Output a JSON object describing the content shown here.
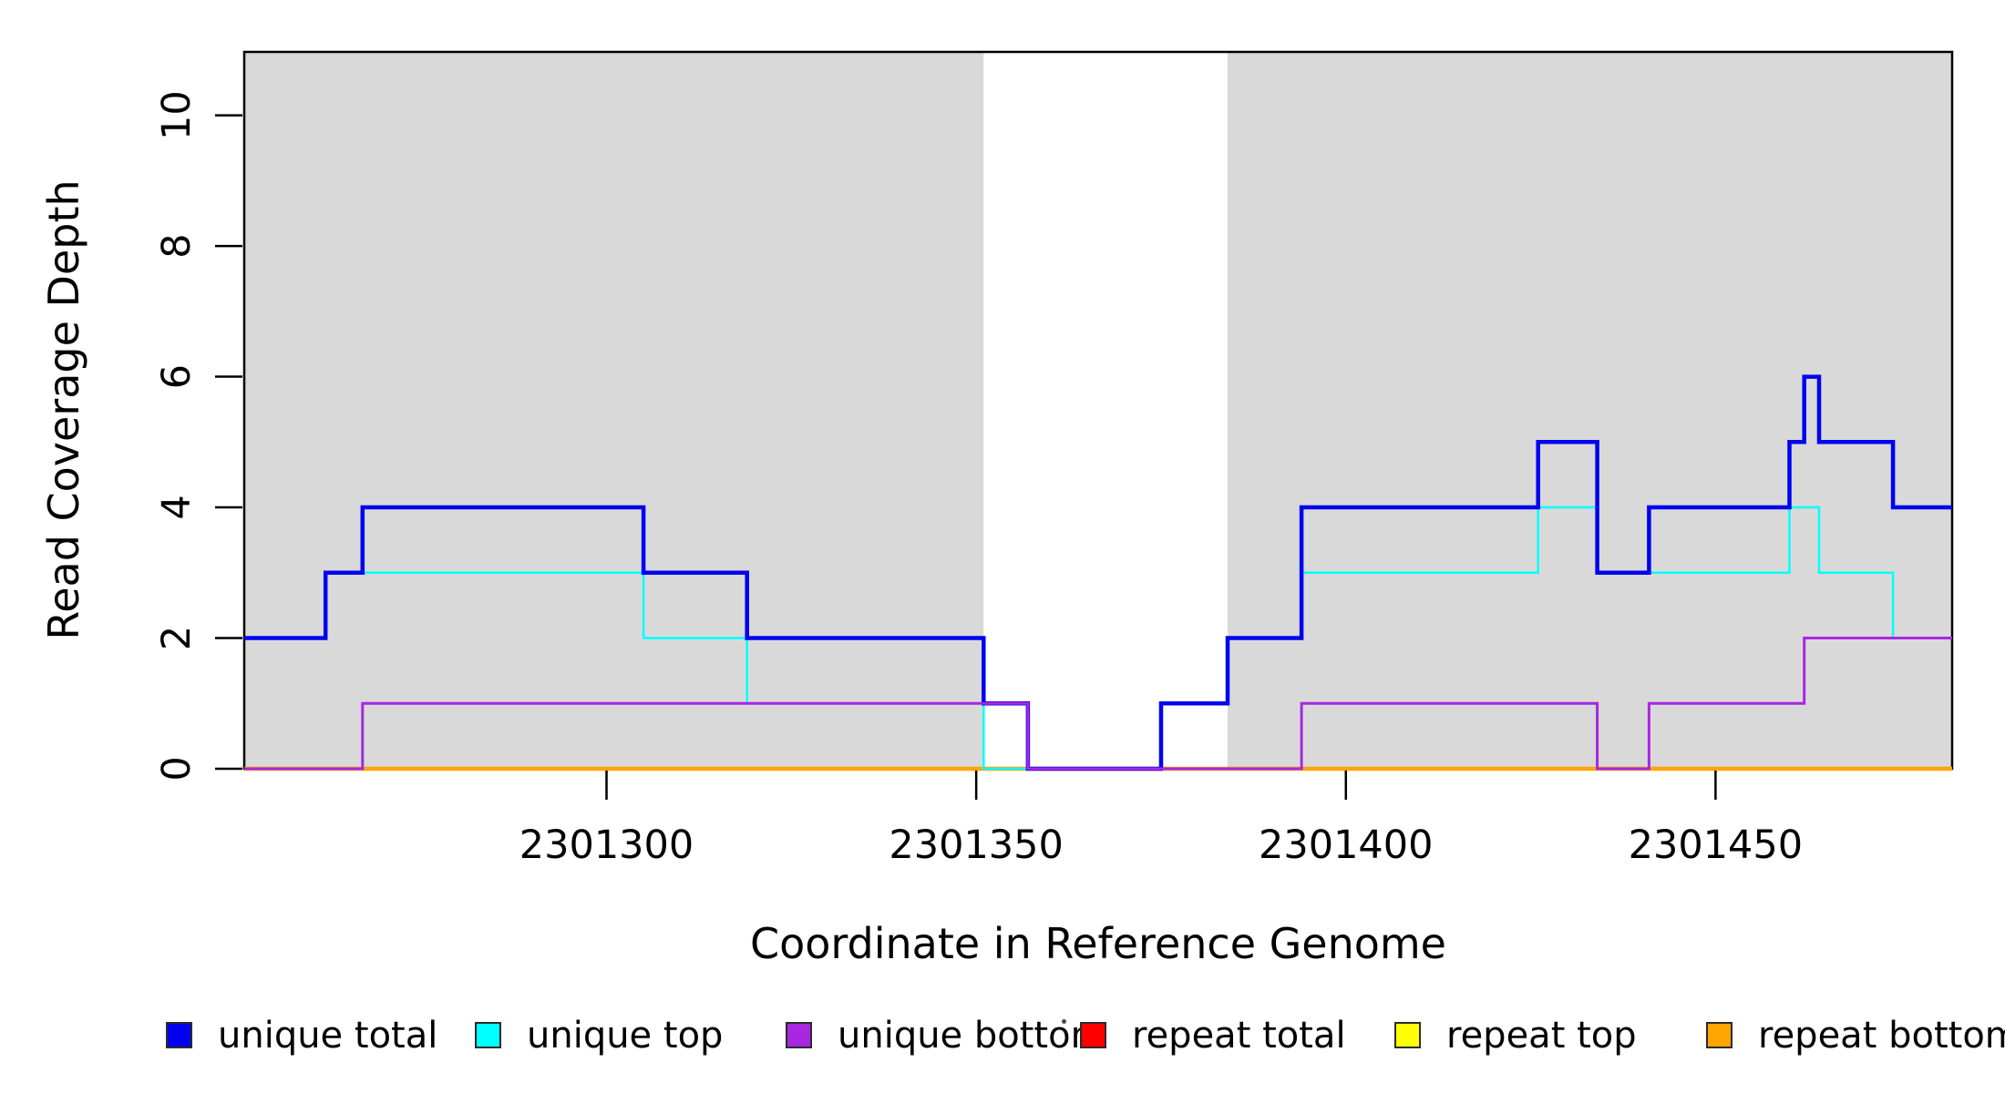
{
  "chart_data": {
    "type": "line",
    "subtype": "step-coverage",
    "title": "",
    "xlabel": "Coordinate in Reference Genome",
    "ylabel": "Read Coverage Depth",
    "x_range": [
      2301251,
      2301482
    ],
    "y_range": [
      0,
      10.97
    ],
    "x_ticks": [
      2301300,
      2301350,
      2301400,
      2301450
    ],
    "y_ticks": [
      0,
      2,
      4,
      6,
      8,
      10
    ],
    "grid": false,
    "legend_position": "bottom",
    "background_color": "#ffffff",
    "shaded_regions": [
      {
        "x0": 2301251,
        "x1": 2301351,
        "color": "#d9d9d9"
      },
      {
        "x0": 2301384,
        "x1": 2301482,
        "color": "#d9d9d9"
      }
    ],
    "series": [
      {
        "name": "repeat total",
        "color": "#ff0000",
        "line_width": 3,
        "points": [
          [
            2301251,
            0
          ]
        ]
      },
      {
        "name": "repeat top",
        "color": "#ffff00",
        "line_width": 3,
        "points": [
          [
            2301251,
            0
          ]
        ]
      },
      {
        "name": "repeat bottom",
        "color": "#ffa500",
        "line_width": 4.5,
        "points": [
          [
            2301251,
            0
          ]
        ]
      },
      {
        "name": "unique top",
        "color": "#00ffff",
        "line_width": 2.5,
        "points": [
          [
            2301251,
            2
          ],
          [
            2301262,
            3
          ],
          [
            2301305,
            2
          ],
          [
            2301319,
            1
          ],
          [
            2301351,
            0
          ],
          [
            2301375,
            1
          ],
          [
            2301384,
            2
          ],
          [
            2301394,
            3
          ],
          [
            2301426,
            4
          ],
          [
            2301434,
            3
          ],
          [
            2301460,
            4
          ],
          [
            2301464,
            3
          ],
          [
            2301474,
            2
          ]
        ]
      },
      {
        "name": "unique total",
        "color": "#0101f0",
        "line_width": 4.5,
        "points": [
          [
            2301251,
            2
          ],
          [
            2301262,
            3
          ],
          [
            2301267,
            4
          ],
          [
            2301305,
            3
          ],
          [
            2301319,
            2
          ],
          [
            2301351,
            1
          ],
          [
            2301357,
            0
          ],
          [
            2301375,
            1
          ],
          [
            2301384,
            2
          ],
          [
            2301394,
            4
          ],
          [
            2301426,
            5
          ],
          [
            2301434,
            3
          ],
          [
            2301441,
            4
          ],
          [
            2301460,
            5
          ],
          [
            2301462,
            6
          ],
          [
            2301464,
            5
          ],
          [
            2301474,
            4
          ]
        ]
      },
      {
        "name": "unique bottom",
        "color": "#a827e0",
        "line_width": 3,
        "points": [
          [
            2301251,
            0
          ],
          [
            2301267,
            1
          ],
          [
            2301357,
            0
          ],
          [
            2301394,
            1
          ],
          [
            2301434,
            0
          ],
          [
            2301441,
            1
          ],
          [
            2301462,
            2
          ]
        ]
      }
    ],
    "legend": [
      {
        "label": "unique total",
        "color": "#0101f0"
      },
      {
        "label": "unique top",
        "color": "#00ffff"
      },
      {
        "label": "unique bottom",
        "color": "#a827e0"
      },
      {
        "label": "repeat total",
        "color": "#ff0000"
      },
      {
        "label": "repeat top",
        "color": "#ffff00"
      },
      {
        "label": "repeat bottom",
        "color": "#ffa500"
      }
    ]
  }
}
